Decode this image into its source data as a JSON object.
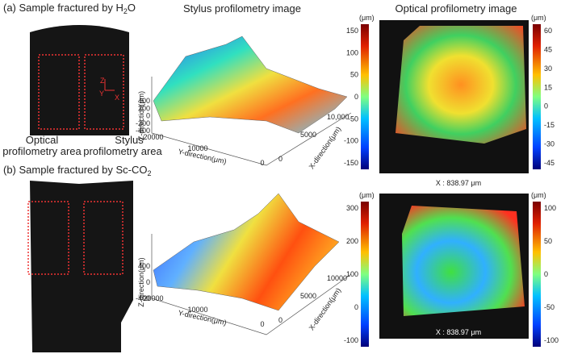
{
  "panel_a": {
    "title": {
      "prefix": "(a) Sample fractured by H",
      "sub": "2",
      "suffix": "O"
    },
    "photo_axes": {
      "z": "Z",
      "y": "Y",
      "x": "X"
    },
    "area_labels": {
      "optical_1": "Optical",
      "optical_2": "profilometry area",
      "stylus_1": "Stylus",
      "stylus_2": "profilometry area"
    },
    "stylus": {
      "title": "Stylus profilometry image",
      "z_label": "Z-direction(μm)",
      "y_label": "Y-direction(μm)",
      "x_label": "X-direction(μm)",
      "z_ticks": [
        "400",
        "200",
        "0",
        "-200",
        "-400"
      ],
      "y_ticks": [
        "20000",
        "10000",
        "0"
      ],
      "x_ticks": [
        "0",
        "5000",
        "10,000"
      ],
      "colorbar_unit": "(μm)",
      "colorbar_ticks": [
        "150",
        "100",
        "50",
        "0",
        "-50",
        "-100",
        "-150"
      ]
    },
    "optical": {
      "title": "Optical profilometry image",
      "colorbar_unit": "(μm)",
      "colorbar_ticks": [
        "60",
        "45",
        "30",
        "15",
        "0",
        "-15",
        "-30",
        "-45"
      ],
      "readout": "X : 838.97 μm"
    }
  },
  "panel_b": {
    "title": {
      "prefix": "(b) Sample fractured by Sc-CO",
      "sub": "2",
      "suffix": ""
    },
    "stylus": {
      "z_label": "Z-direction(μm)",
      "y_label": "Y-direction(μm)",
      "x_label": "X-direction(μm)",
      "z_ticks": [
        "400",
        "0",
        "-400"
      ],
      "y_ticks": [
        "20000",
        "10000",
        "0"
      ],
      "x_ticks": [
        "0",
        "5000",
        "10000"
      ],
      "colorbar_unit": "(μm)",
      "colorbar_ticks": [
        "300",
        "200",
        "100",
        "0",
        "-100"
      ]
    },
    "optical": {
      "colorbar_unit": "(μm)",
      "colorbar_ticks": [
        "100",
        "50",
        "0",
        "-50",
        "-100"
      ],
      "readout": "X : 838.97 μm"
    }
  }
}
